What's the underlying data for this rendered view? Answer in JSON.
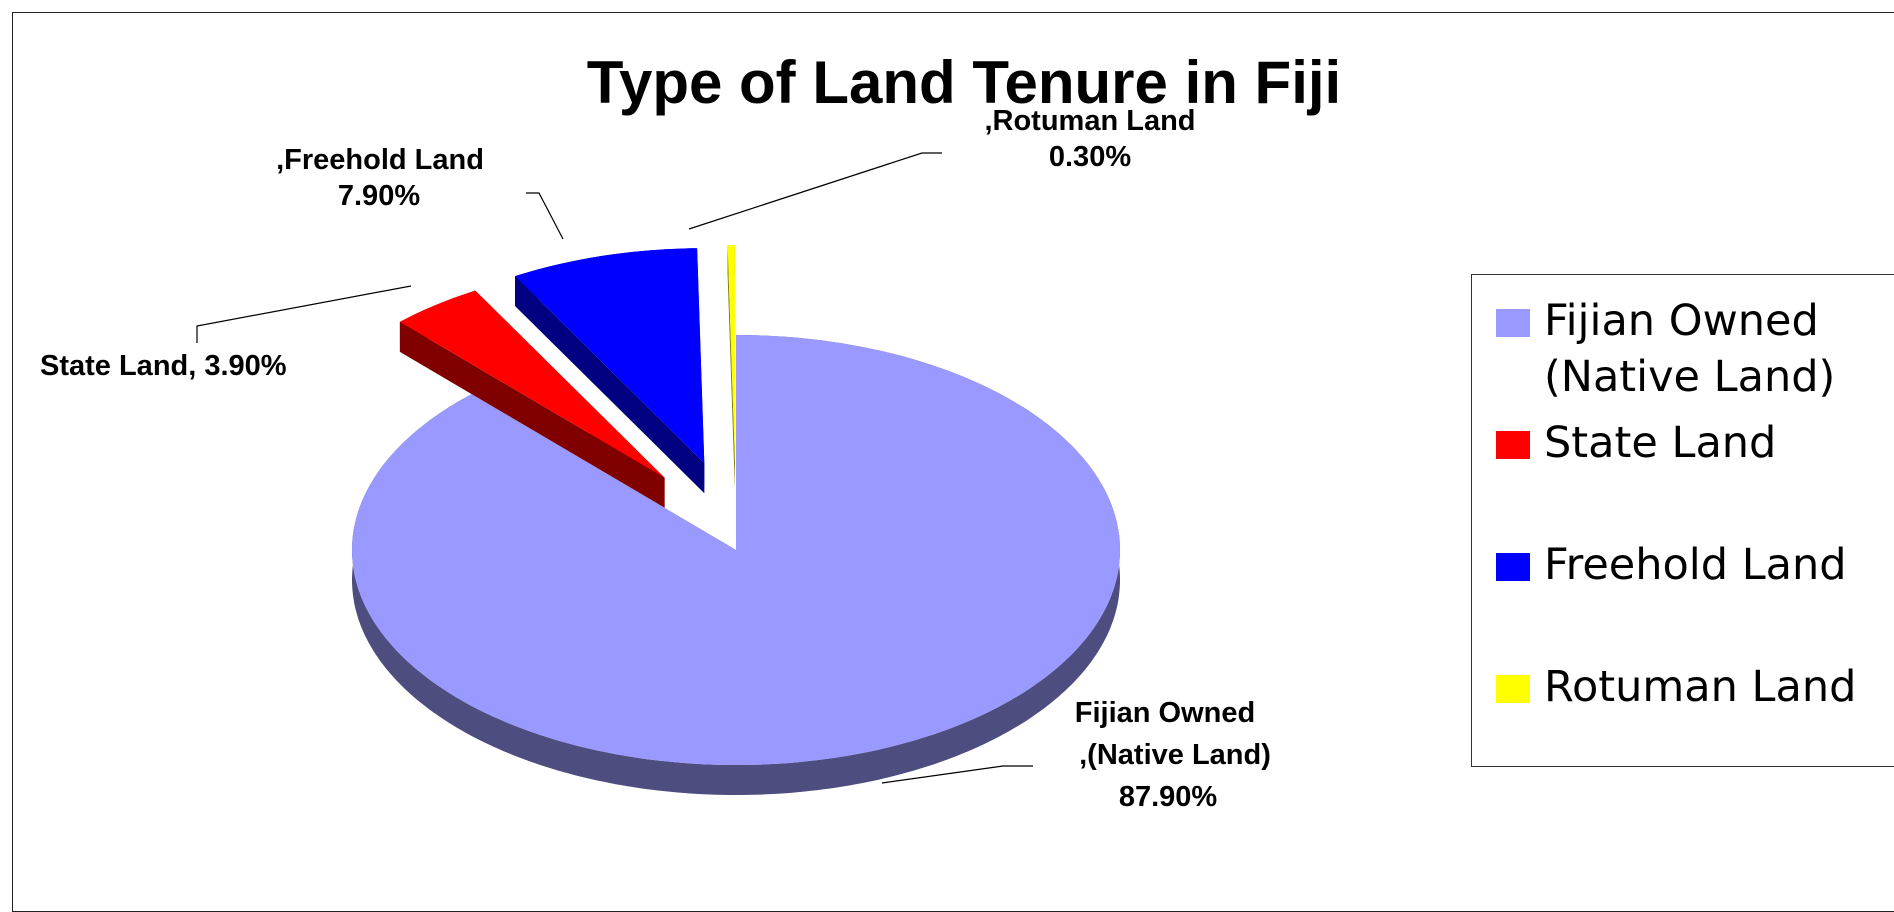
{
  "chart_data": {
    "type": "pie",
    "title": "Type of Land Tenure in Fiji",
    "categories": [
      "Fijian Owned (Native Land)",
      "State Land",
      "Freehold Land",
      "Rotuman Land"
    ],
    "label_names": [
      "Fijian Owned ,(Native Land)",
      "State Land,",
      ",Freehold Land",
      ",Rotuman Land"
    ],
    "values": [
      87.9,
      3.9,
      7.9,
      0.3
    ],
    "value_labels": [
      "87.90%",
      "3.90%",
      "7.90%",
      "0.30%"
    ],
    "colors": [
      "#9999ff",
      "#ff0000",
      "#0000ff",
      "#ffff00"
    ],
    "legend": "right"
  }
}
